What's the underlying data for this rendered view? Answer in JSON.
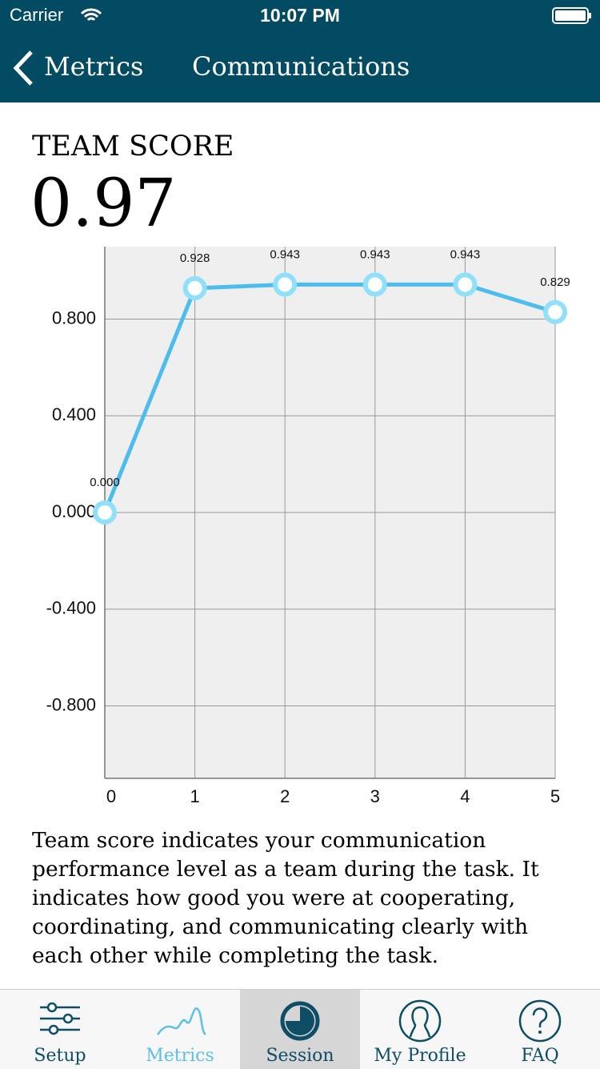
{
  "status_bar": {
    "carrier": "Carrier",
    "time": "10:07 PM"
  },
  "nav": {
    "back": "Metrics",
    "title": "Communications"
  },
  "score": {
    "label": "TEAM SCORE",
    "value": "0.97"
  },
  "chart_data": {
    "type": "line",
    "x": [
      0,
      1,
      2,
      3,
      4,
      5
    ],
    "series": [
      {
        "color": "#4dbcee",
        "marker_color": "#8fe0f8",
        "values": [
          0,
          0.928,
          0.943,
          0.943,
          0.943,
          0.829
        ],
        "value_labels": [
          "0.000",
          "0.928",
          "0.943",
          "0.943",
          "0.943",
          "0.829"
        ]
      }
    ],
    "xlim": [
      0,
      5
    ],
    "xticks": [
      0,
      1,
      2,
      3,
      4,
      5
    ],
    "ylim": [
      -1.1,
      1.1
    ],
    "yticks": [
      {
        "value": 0.8,
        "label": "0.800"
      },
      {
        "value": 0.4,
        "label": "0.400"
      },
      {
        "value": 0,
        "label": "0.000"
      },
      {
        "value": -0.4,
        "label": "-0.400"
      },
      {
        "value": -0.8,
        "label": "-0.800"
      }
    ],
    "grid": true
  },
  "description": "Team score indicates your communication performance level as a team during the task. It indicates how good you were at cooperating, coordinating, and communicating clearly with each other while completing the task.",
  "tabs": [
    {
      "label": "Setup"
    },
    {
      "label": "Metrics"
    },
    {
      "label": "Session"
    },
    {
      "label": "My Profile"
    },
    {
      "label": "FAQ"
    }
  ]
}
